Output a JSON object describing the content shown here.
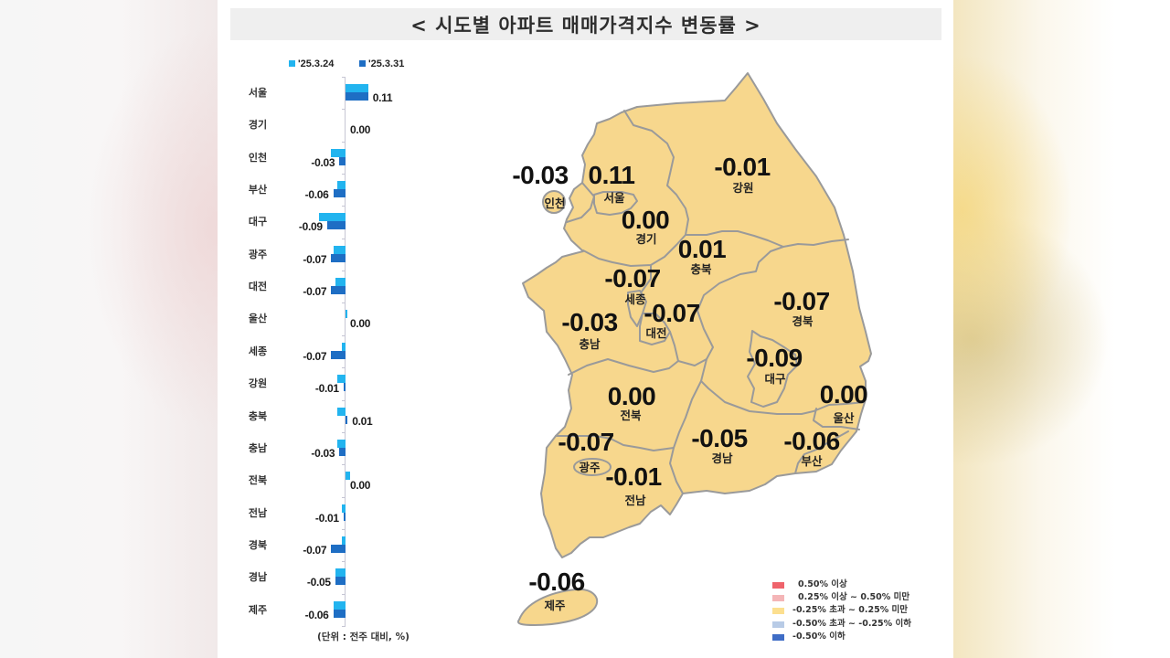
{
  "title": "< 시도별 아파트 매매가격지수 변동률 >",
  "bar_chart": {
    "legend": [
      {
        "label": "'25.3.24",
        "color": "#22b4ef"
      },
      {
        "label": "'25.3.31",
        "color": "#1e6ec4"
      }
    ],
    "unit_note": "(단위 : 전주 대비, %)"
  },
  "map": {
    "fill_color": "#f7d78d",
    "border_color": "#9a9a9a",
    "regions": [
      {
        "name": "서울",
        "value": "0.11"
      },
      {
        "name": "경기",
        "value": "0.00"
      },
      {
        "name": "인천",
        "value": "-0.03"
      },
      {
        "name": "부산",
        "value": "-0.06"
      },
      {
        "name": "대구",
        "value": "-0.09"
      },
      {
        "name": "광주",
        "value": "-0.07"
      },
      {
        "name": "대전",
        "value": "-0.07"
      },
      {
        "name": "울산",
        "value": "0.00"
      },
      {
        "name": "세종",
        "value": "-0.07"
      },
      {
        "name": "강원",
        "value": "-0.01"
      },
      {
        "name": "충북",
        "value": "0.01"
      },
      {
        "name": "충남",
        "value": "-0.03"
      },
      {
        "name": "전북",
        "value": "0.00"
      },
      {
        "name": "전남",
        "value": "-0.01"
      },
      {
        "name": "경북",
        "value": "-0.07"
      },
      {
        "name": "경남",
        "value": "-0.05"
      },
      {
        "name": "제주",
        "value": "-0.06"
      }
    ],
    "legend": [
      {
        "label": "0.50% 이상",
        "color": "#ef636b"
      },
      {
        "label": "0.25% 이상 ~ 0.50% 미만",
        "color": "#f4b5b7"
      },
      {
        "label": "-0.25% 초과 ~ 0.25% 미만",
        "color": "#fcdf8f"
      },
      {
        "label": "-0.50% 초과 ~ -0.25% 이하",
        "color": "#b8cbe6"
      },
      {
        "label": "-0.50% 이하",
        "color": "#3f6dc6"
      }
    ]
  },
  "chart_data": [
    {
      "type": "bar",
      "orientation": "horizontal",
      "title": "시도별 아파트 매매가격지수 변동률",
      "xlabel": "",
      "ylabel": "",
      "unit": "(단위 : 전주 대비, %)",
      "legend_position": "top",
      "grid": false,
      "categories": [
        "서울",
        "경기",
        "인천",
        "부산",
        "대구",
        "광주",
        "대전",
        "울산",
        "세종",
        "강원",
        "충북",
        "충남",
        "전북",
        "전남",
        "경북",
        "경남",
        "제주"
      ],
      "series": [
        {
          "name": "'25.3.24",
          "color": "#22b4ef",
          "values": [
            0.11,
            0.0,
            -0.07,
            -0.04,
            -0.13,
            -0.06,
            -0.05,
            0.01,
            -0.02,
            -0.04,
            -0.04,
            -0.04,
            0.02,
            -0.02,
            -0.02,
            -0.05,
            -0.06
          ]
        },
        {
          "name": "'25.3.31",
          "color": "#1e6ec4",
          "values": [
            0.11,
            0.0,
            -0.03,
            -0.06,
            -0.09,
            -0.07,
            -0.07,
            0.0,
            -0.07,
            -0.01,
            0.01,
            -0.03,
            0.0,
            -0.01,
            -0.07,
            -0.05,
            -0.06
          ],
          "labels": [
            "0.11",
            "0.00",
            "-0.03",
            "-0.06",
            "-0.09",
            "-0.07",
            "-0.07",
            "0.00",
            "-0.07",
            "-0.01",
            "0.01",
            "-0.03",
            "0.00",
            "-0.01",
            "-0.07",
            "-0.05",
            "-0.06"
          ]
        }
      ]
    },
    {
      "type": "table",
      "title": "시도별 아파트 매매가격지수 변동률 (지도, '25.3.31)",
      "columns": [
        "region",
        "value"
      ],
      "rows": [
        [
          "서울",
          0.11
        ],
        [
          "경기",
          0.0
        ],
        [
          "인천",
          -0.03
        ],
        [
          "강원",
          -0.01
        ],
        [
          "충북",
          0.01
        ],
        [
          "세종",
          -0.07
        ],
        [
          "대전",
          -0.07
        ],
        [
          "충남",
          -0.03
        ],
        [
          "경북",
          -0.07
        ],
        [
          "대구",
          -0.09
        ],
        [
          "울산",
          0.0
        ],
        [
          "전북",
          0.0
        ],
        [
          "광주",
          -0.07
        ],
        [
          "전남",
          -0.01
        ],
        [
          "경남",
          -0.05
        ],
        [
          "부산",
          -0.06
        ],
        [
          "제주",
          -0.06
        ]
      ],
      "color_scale": [
        {
          "range": "0.50% 이상",
          "color": "#ef636b"
        },
        {
          "range": "0.25% 이상 ~ 0.50% 미만",
          "color": "#f4b5b7"
        },
        {
          "range": "-0.25% 초과 ~ 0.25% 미만",
          "color": "#fcdf8f"
        },
        {
          "range": "-0.50% 초과 ~ -0.25% 이하",
          "color": "#b8cbe6"
        },
        {
          "range": "-0.50% 이하",
          "color": "#3f6dc6"
        }
      ]
    }
  ]
}
